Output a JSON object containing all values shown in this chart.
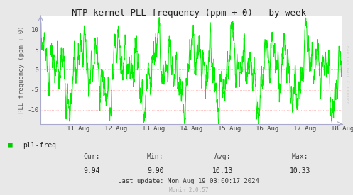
{
  "title": "NTP kernel PLL frequency (ppm + 0) - by week",
  "ylabel": "PLL frequency (ppm + 0)",
  "bg_color": "#e8e8e8",
  "plot_bg_color": "#ffffff",
  "line_color": "#00ee00",
  "grid_color": "#ffaaaa",
  "border_color": "#aaaacc",
  "ytick_values": [
    10,
    5,
    0,
    -5,
    -10
  ],
  "ytick_labels": [
    "10",
    " 5",
    " 0",
    " -5",
    "-10"
  ],
  "ylim": [
    -13.5,
    13.5
  ],
  "xtick_labels": [
    "11 Aug",
    "12 Aug",
    "13 Aug",
    "14 Aug",
    "15 Aug",
    "16 Aug",
    "17 Aug",
    "18 Aug"
  ],
  "cur": "9.94",
  "min": "9.90",
  "avg": "10.13",
  "max": "10.33",
  "last_update": "Last update: Mon Aug 19 03:00:17 2024",
  "munin_version": "Munin 2.0.57",
  "legend_label": "pll-freq",
  "legend_color": "#00cc00",
  "rrdtool_text": "RRDTOOL / TOBI OETIKER",
  "seed": 42
}
